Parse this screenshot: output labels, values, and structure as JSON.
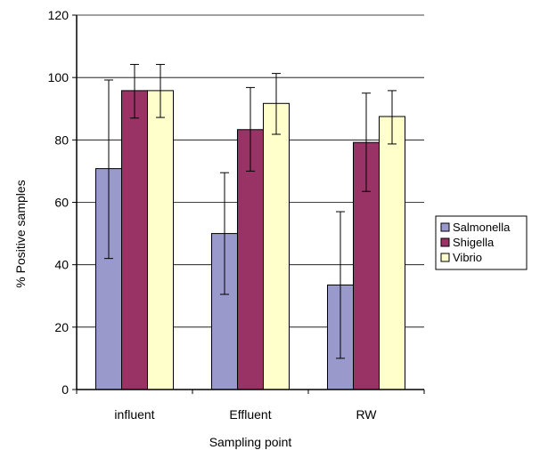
{
  "chart_data": {
    "type": "bar",
    "title": "",
    "xlabel": "Sampling point",
    "ylabel": "% Positive samples",
    "ylim": [
      0,
      120
    ],
    "yticks": [
      0,
      20,
      40,
      60,
      80,
      100,
      120
    ],
    "grid": true,
    "legend_position": "right",
    "categories": [
      "influent",
      "Effluent",
      "RW"
    ],
    "series": [
      {
        "name": "Salmonella",
        "color": "#9999cc",
        "values": [
          70.8,
          50.0,
          33.5
        ],
        "error_low": [
          42.0,
          30.5,
          10.0
        ],
        "error_high": [
          99.2,
          69.5,
          57.0
        ]
      },
      {
        "name": "Shigella",
        "color": "#993366",
        "values": [
          95.8,
          83.3,
          79.2
        ],
        "error_low": [
          87.0,
          70.0,
          63.5
        ],
        "error_high": [
          104.2,
          96.8,
          95.0
        ]
      },
      {
        "name": "Vibrio",
        "color": "#ffffcc",
        "values": [
          95.8,
          91.7,
          87.5
        ],
        "error_low": [
          87.2,
          81.8,
          78.7
        ],
        "error_high": [
          104.2,
          101.3,
          95.8
        ]
      }
    ]
  }
}
